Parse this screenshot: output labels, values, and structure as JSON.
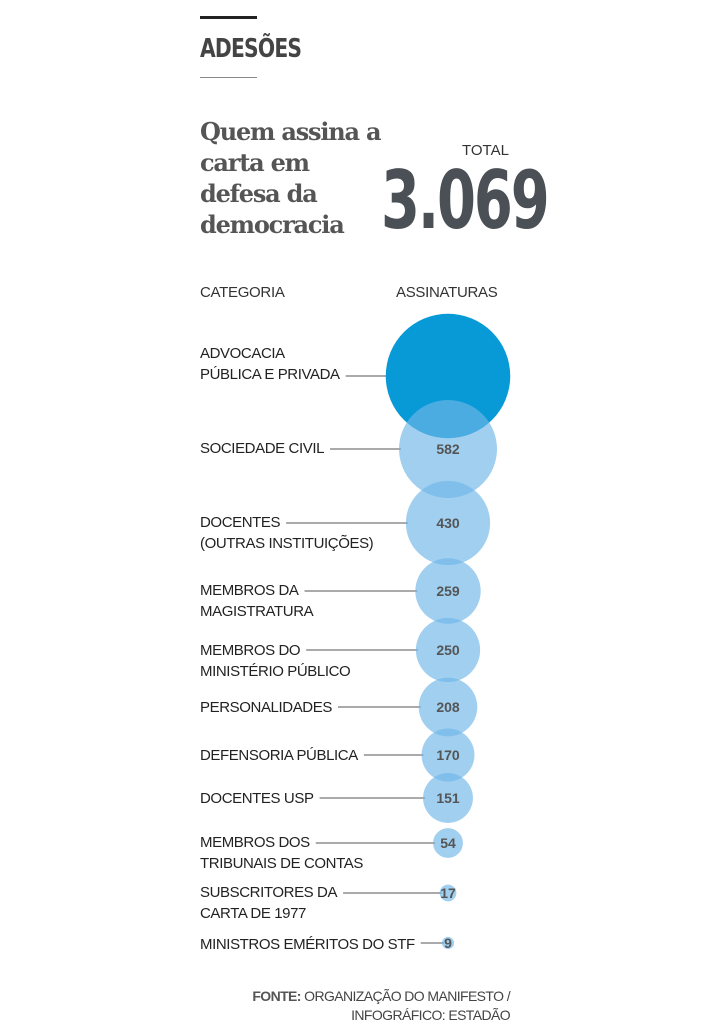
{
  "header": {
    "kicker": "ADESÕES",
    "title": "Quem assina a carta em defesa da democracia",
    "total_label": "TOTAL",
    "total_value": "3.069"
  },
  "chart_data": {
    "type": "bubble",
    "column_headers": [
      "CATEGORIA",
      "ASSINATURAS"
    ],
    "colors": {
      "highlight": "#0096d6",
      "default": "#9dcbee",
      "connector": "#555555",
      "value_text": "#555555"
    },
    "rows": [
      {
        "label_lines": [
          "ADVOCACIA",
          "PÚBLICA E PRIVADA"
        ],
        "value": 939,
        "value_label": "",
        "highlight": true
      },
      {
        "label_lines": [
          "SOCIEDADE CIVIL"
        ],
        "value": 582,
        "value_label": "582"
      },
      {
        "label_lines": [
          "DOCENTES",
          "(OUTRAS INSTITUIÇÕES)"
        ],
        "value": 430,
        "value_label": "430"
      },
      {
        "label_lines": [
          "MEMBROS DA",
          "MAGISTRATURA"
        ],
        "value": 259,
        "value_label": "259"
      },
      {
        "label_lines": [
          "MEMBROS DO",
          "MINISTÉRIO PÚBLICO"
        ],
        "value": 250,
        "value_label": "250"
      },
      {
        "label_lines": [
          "PERSONALIDADES"
        ],
        "value": 208,
        "value_label": "208"
      },
      {
        "label_lines": [
          "DEFENSORIA PÚBLICA"
        ],
        "value": 170,
        "value_label": "170"
      },
      {
        "label_lines": [
          "DOCENTES USP"
        ],
        "value": 151,
        "value_label": "151"
      },
      {
        "label_lines": [
          "MEMBROS DOS",
          "TRIBUNAIS DE CONTAS"
        ],
        "value": 54,
        "value_label": "54"
      },
      {
        "label_lines": [
          "SUBSCRITORES DA",
          "CARTA DE 1977"
        ],
        "value": 17,
        "value_label": "17"
      },
      {
        "label_lines": [
          "MINISTROS EMÉRITOS DO STF"
        ],
        "value": 9,
        "value_label": "9"
      }
    ]
  },
  "source": {
    "prefix": "FONTE:",
    "line1": "ORGANIZAÇÃO DO MANIFESTO /",
    "line2": "INFOGRÁFICO: ESTADÃO"
  }
}
